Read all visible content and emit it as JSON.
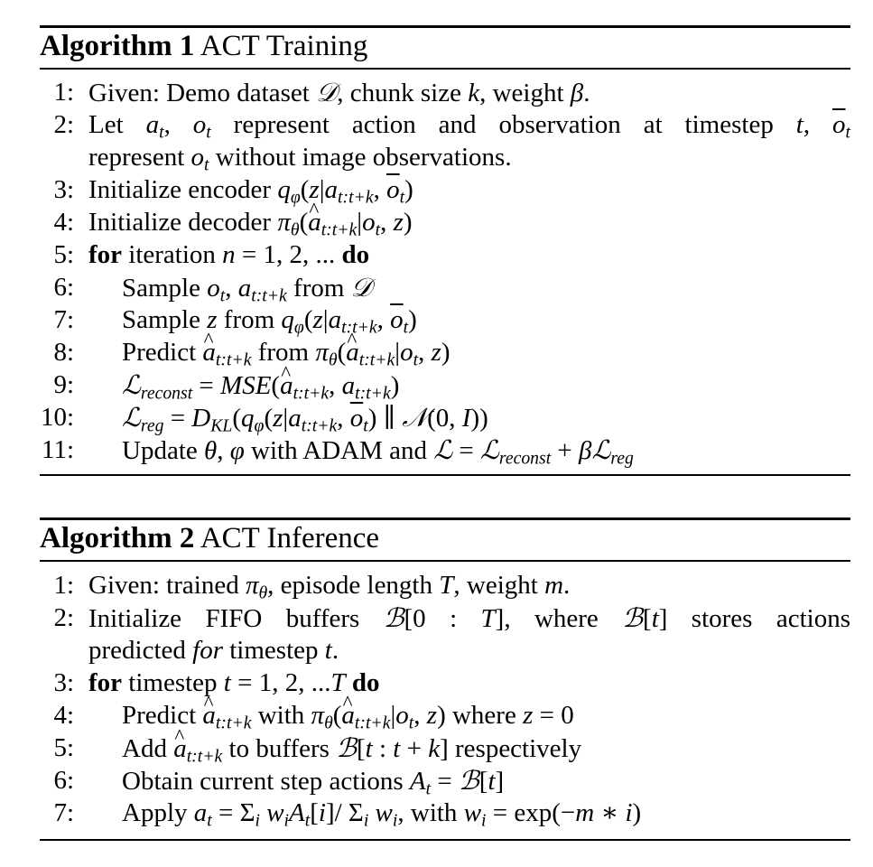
{
  "algorithm1": {
    "label": "Algorithm 1",
    "title": "ACT Training",
    "lines": [
      {
        "n": "1:",
        "text": "Given: Demo dataset 𝒟, chunk size k, weight β."
      },
      {
        "n": "2:",
        "text": "Let aₜ, oₜ represent action and observation at timestep t, ōₜ",
        "cont": "represent oₜ without image observations."
      },
      {
        "n": "3:",
        "text": "Initialize encoder q_φ(z|a_{t:t+k}, ōₜ)"
      },
      {
        "n": "4:",
        "text": "Initialize decoder π_θ(â_{t:t+k}|oₜ, z)"
      },
      {
        "n": "5:",
        "text": "for iteration n = 1, 2, ... do"
      },
      {
        "n": "6:",
        "text": "Sample oₜ, a_{t:t+k} from 𝒟"
      },
      {
        "n": "7:",
        "text": "Sample z from q_φ(z|a_{t:t+k}, ōₜ)"
      },
      {
        "n": "8:",
        "text": "Predict â_{t:t+k} from π_θ(â_{t:t+k}|oₜ, z)"
      },
      {
        "n": "9:",
        "text": "ℒ_reconst = MSE(â_{t:t+k}, a_{t:t+k})"
      },
      {
        "n": "10:",
        "text": "ℒ_reg = D_KL(q_φ(z|a_{t:t+k}, ōₜ) ∥ 𝒩(0, I))"
      },
      {
        "n": "11:",
        "text": "Update θ, φ with ADAM and ℒ = ℒ_reconst + βℒ_reg"
      }
    ]
  },
  "algorithm2": {
    "label": "Algorithm 2",
    "title": "ACT Inference",
    "lines": [
      {
        "n": "1:",
        "text": "Given: trained π_θ, episode length T, weight m."
      },
      {
        "n": "2:",
        "text": "Initialize FIFO buffers ℬ[0 : T], where ℬ[t] stores actions",
        "cont": "predicted for timestep t."
      },
      {
        "n": "3:",
        "text": "for timestep t = 1, 2, ...T do"
      },
      {
        "n": "4:",
        "text": "Predict â_{t:t+k} with π_θ(â_{t:t+k}|oₜ, z) where z = 0"
      },
      {
        "n": "5:",
        "text": "Add â_{t:t+k} to buffers ℬ[t : t + k] respectively"
      },
      {
        "n": "6:",
        "text": "Obtain current step actions Aₜ = ℬ[t]"
      },
      {
        "n": "7:",
        "text": "Apply aₜ = Σᵢ wᵢAₜ[i]/ Σᵢ wᵢ, with wᵢ = exp(−m ∗ i)"
      }
    ]
  }
}
